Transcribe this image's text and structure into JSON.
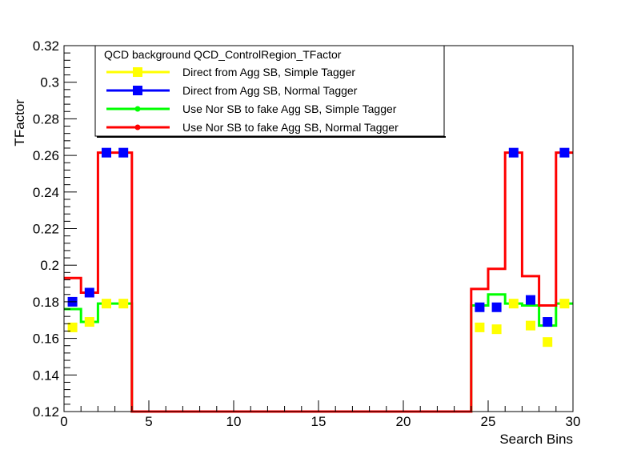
{
  "chart_data": {
    "type": "line",
    "title": "",
    "xlabel": "Search Bins",
    "ylabel": "TFactor",
    "xlim": [
      0,
      30
    ],
    "ylim": [
      0.12,
      0.32
    ],
    "x_ticks": [
      0,
      5,
      10,
      15,
      20,
      25,
      30
    ],
    "y_ticks": [
      0.12,
      0.14,
      0.16,
      0.18,
      0.2,
      0.22,
      0.24,
      0.26,
      0.28,
      0.3,
      0.32
    ],
    "grid": false,
    "legend": {
      "position": "top-left",
      "header": "QCD background QCD_ControlRegion_TFactor"
    },
    "series": [
      {
        "name": "Direct from Agg SB, Simple Tagger",
        "color": "#ffff00",
        "style": "markers",
        "points": [
          [
            0.5,
            0.166
          ],
          [
            1.5,
            0.169
          ],
          [
            2.5,
            0.179
          ],
          [
            3.5,
            0.179
          ],
          [
            24.5,
            0.166
          ],
          [
            25.5,
            0.165
          ],
          [
            26.5,
            0.179
          ],
          [
            27.5,
            0.167
          ],
          [
            28.5,
            0.158
          ],
          [
            29.5,
            0.179
          ]
        ]
      },
      {
        "name": "Direct from Agg SB, Normal Tagger",
        "color": "#0000ff",
        "style": "markers",
        "points": [
          [
            0.5,
            0.18
          ],
          [
            1.5,
            0.185
          ],
          [
            2.5,
            0.2615
          ],
          [
            3.5,
            0.2615
          ],
          [
            24.5,
            0.177
          ],
          [
            25.5,
            0.177
          ],
          [
            26.5,
            0.2615
          ],
          [
            27.5,
            0.181
          ],
          [
            28.5,
            0.169
          ],
          [
            29.5,
            0.2615
          ]
        ]
      },
      {
        "name": "Use Nor SB to fake Agg SB, Simple Tagger",
        "color": "#00ff00",
        "style": "step",
        "values": [
          0.176,
          0.169,
          0.179,
          0.179,
          0.12,
          0.12,
          0.12,
          0.12,
          0.12,
          0.12,
          0.12,
          0.12,
          0.12,
          0.12,
          0.12,
          0.12,
          0.12,
          0.12,
          0.12,
          0.12,
          0.12,
          0.12,
          0.12,
          0.12,
          0.178,
          0.184,
          0.179,
          0.178,
          0.167,
          0.179
        ]
      },
      {
        "name": "Use Nor SB to fake Agg SB, Normal Tagger",
        "color": "#ff0000",
        "style": "step",
        "values": [
          0.193,
          0.185,
          0.2615,
          0.2615,
          0.12,
          0.12,
          0.12,
          0.12,
          0.12,
          0.12,
          0.12,
          0.12,
          0.12,
          0.12,
          0.12,
          0.12,
          0.12,
          0.12,
          0.12,
          0.12,
          0.12,
          0.12,
          0.12,
          0.12,
          0.187,
          0.198,
          0.2615,
          0.194,
          0.178,
          0.2615
        ]
      }
    ]
  }
}
